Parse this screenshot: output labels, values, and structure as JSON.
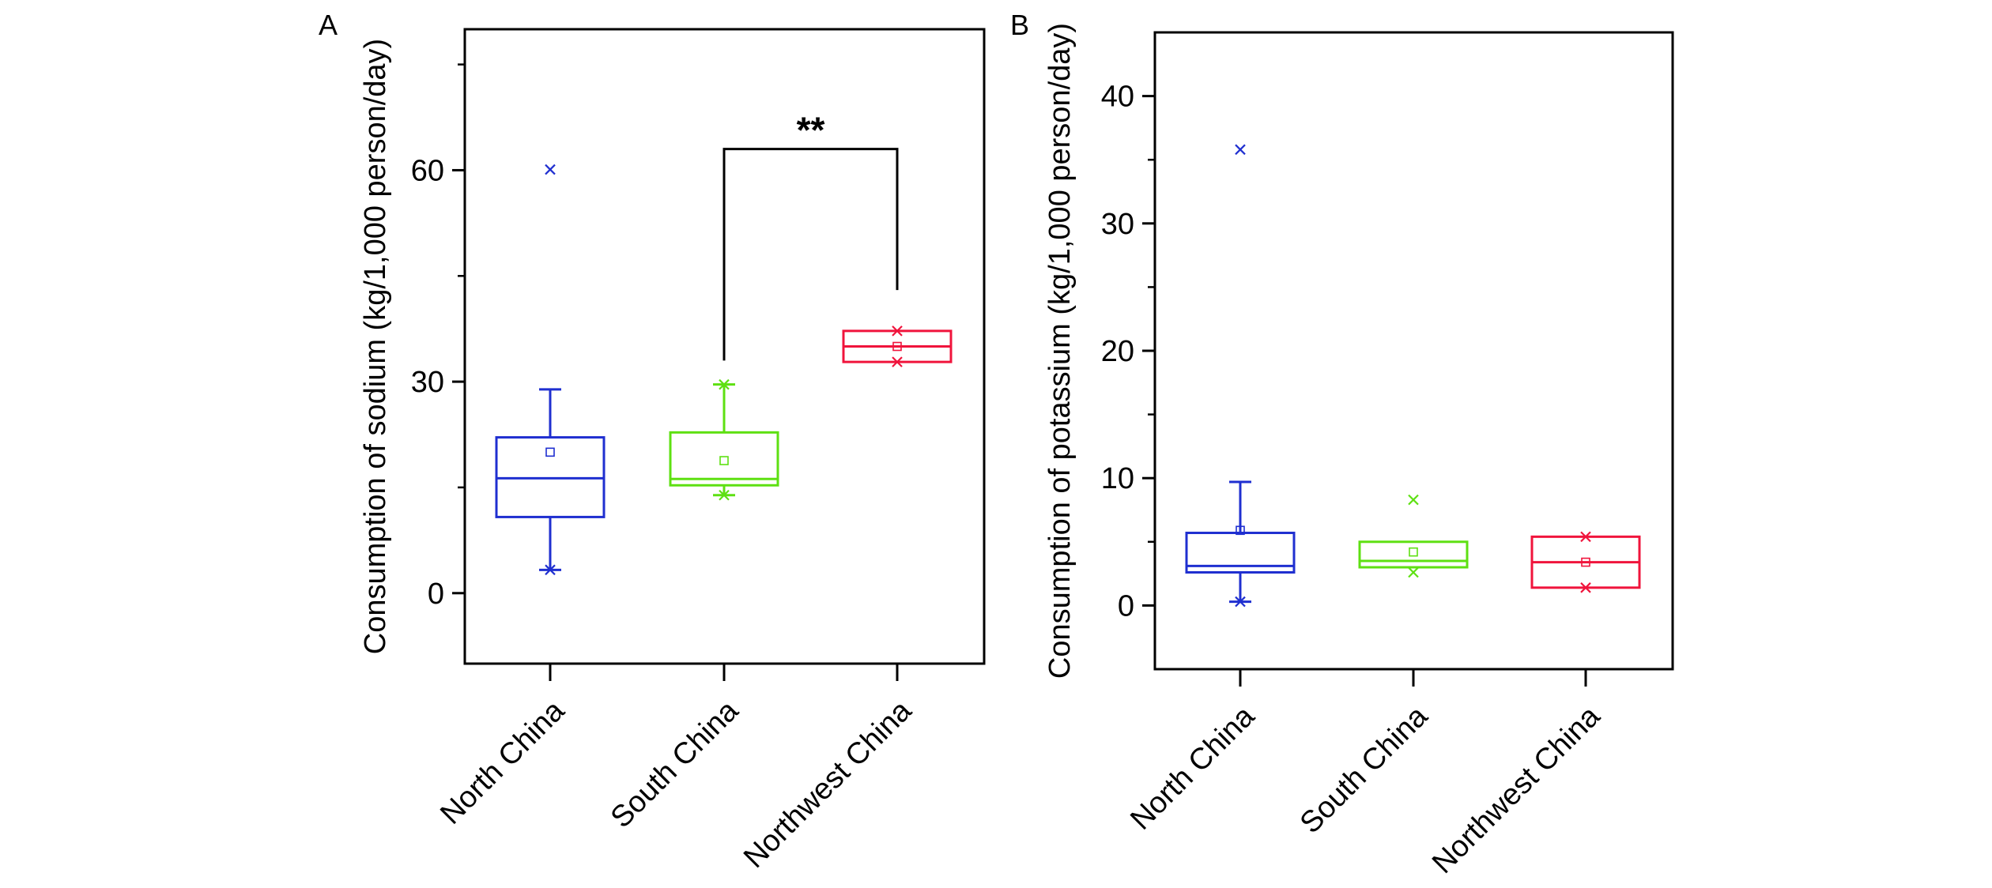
{
  "colors": {
    "north": "#1f2fd0",
    "south": "#5ee012",
    "northwest": "#f0143c",
    "axis": "#000000"
  },
  "chart_data": [
    {
      "type": "box",
      "panel_label": "A",
      "xlabel": "",
      "ylabel": "Consumption of sodium (kg/1,000 person/day)",
      "ylim": [
        -10,
        80
      ],
      "yticks": [
        0,
        30,
        60
      ],
      "ytick_labels": [
        "0",
        "30",
        "60"
      ],
      "yminor_ticks": [
        15,
        45,
        75
      ],
      "categories": [
        "North China",
        "South China",
        "Northwest China"
      ],
      "boxes": [
        {
          "name": "North China",
          "color_key": "north",
          "q1": 10.8,
          "median": 16.3,
          "q3": 22.1,
          "whisker_low": 3.3,
          "whisker_high": 28.9,
          "mean": 20.0,
          "minmax": [
            3.3
          ],
          "outliers": [
            60.1
          ]
        },
        {
          "name": "South China",
          "color_key": "south",
          "q1": 15.3,
          "median": 16.2,
          "q3": 22.8,
          "whisker_low": 13.9,
          "whisker_high": 29.6,
          "mean": 18.8,
          "minmax": [
            13.9,
            29.6
          ],
          "outliers": []
        },
        {
          "name": "Northwest China",
          "color_key": "northwest",
          "q1": 32.8,
          "median": 35.0,
          "q3": 37.2,
          "whisker_low": null,
          "whisker_high": null,
          "mean": 35.0,
          "minmax": [
            32.8,
            37.2
          ],
          "outliers": []
        }
      ],
      "significance": {
        "from": 1,
        "to": 2,
        "left_bottom": 33.0,
        "right_bottom": 43.0,
        "top": 63.0,
        "label": "**"
      },
      "grid": false
    },
    {
      "type": "box",
      "panel_label": "B",
      "xlabel": "",
      "ylabel": "Consumption of potassium (kg/1,000 person/day)",
      "ylim": [
        -5,
        45
      ],
      "yticks": [
        0,
        10,
        20,
        30,
        40
      ],
      "ytick_labels": [
        "0",
        "10",
        "20",
        "30",
        "40"
      ],
      "yminor_ticks": [
        5,
        15,
        25,
        35
      ],
      "categories": [
        "North China",
        "South China",
        "Northwest China"
      ],
      "boxes": [
        {
          "name": "North China",
          "color_key": "north",
          "q1": 2.6,
          "median": 3.1,
          "q3": 5.7,
          "whisker_low": 0.3,
          "whisker_high": 9.7,
          "mean": 5.9,
          "minmax": [
            0.3
          ],
          "outliers": [
            35.8
          ]
        },
        {
          "name": "South China",
          "color_key": "south",
          "q1": 3.0,
          "median": 3.5,
          "q3": 5.0,
          "whisker_low": null,
          "whisker_high": null,
          "mean": 4.2,
          "minmax": [
            2.6
          ],
          "outliers": [
            8.3
          ]
        },
        {
          "name": "Northwest China",
          "color_key": "northwest",
          "q1": 1.4,
          "median": 3.4,
          "q3": 5.4,
          "whisker_low": null,
          "whisker_high": null,
          "mean": 3.4,
          "minmax": [
            1.4,
            5.4
          ],
          "outliers": []
        }
      ],
      "grid": false
    }
  ]
}
